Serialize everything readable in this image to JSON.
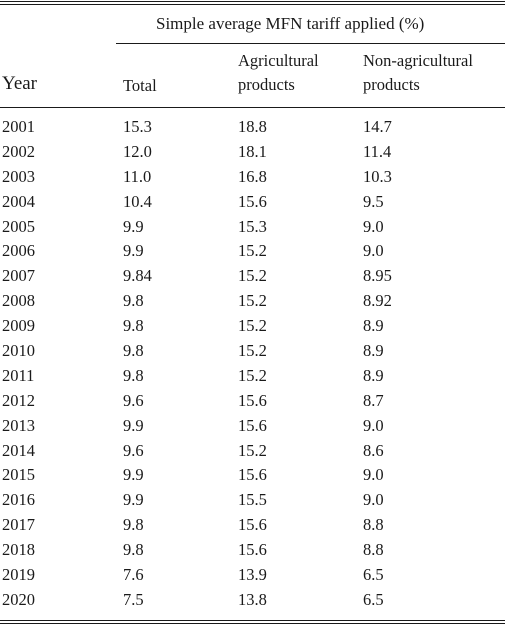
{
  "table": {
    "spanner": "Simple average MFN tariff applied (%)",
    "headers": {
      "year": "Year",
      "total": "Total",
      "agricultural_line1": "Agricultural",
      "agricultural_line2": "products",
      "nonagricultural_line1": "Non-agricultural",
      "nonagricultural_line2": "products"
    },
    "rows": [
      {
        "year": "2001",
        "total": "15.3",
        "agri": "18.8",
        "nonagri": "14.7"
      },
      {
        "year": "2002",
        "total": "12.0",
        "agri": "18.1",
        "nonagri": "11.4"
      },
      {
        "year": "2003",
        "total": "11.0",
        "agri": "16.8",
        "nonagri": "10.3"
      },
      {
        "year": "2004",
        "total": "10.4",
        "agri": "15.6",
        "nonagri": "9.5"
      },
      {
        "year": "2005",
        "total": "9.9",
        "agri": "15.3",
        "nonagri": "9.0"
      },
      {
        "year": "2006",
        "total": "9.9",
        "agri": "15.2",
        "nonagri": "9.0"
      },
      {
        "year": "2007",
        "total": "9.84",
        "agri": "15.2",
        "nonagri": "8.95"
      },
      {
        "year": "2008",
        "total": "9.8",
        "agri": "15.2",
        "nonagri": "8.92"
      },
      {
        "year": "2009",
        "total": "9.8",
        "agri": "15.2",
        "nonagri": "8.9"
      },
      {
        "year": "2010",
        "total": "9.8",
        "agri": "15.2",
        "nonagri": "8.9"
      },
      {
        "year": "2011",
        "total": "9.8",
        "agri": "15.2",
        "nonagri": "8.9"
      },
      {
        "year": "2012",
        "total": "9.6",
        "agri": "15.6",
        "nonagri": "8.7"
      },
      {
        "year": "2013",
        "total": "9.9",
        "agri": "15.6",
        "nonagri": "9.0"
      },
      {
        "year": "2014",
        "total": "9.6",
        "agri": "15.2",
        "nonagri": "8.6"
      },
      {
        "year": "2015",
        "total": "9.9",
        "agri": "15.6",
        "nonagri": "9.0"
      },
      {
        "year": "2016",
        "total": "9.9",
        "agri": "15.5",
        "nonagri": "9.0"
      },
      {
        "year": "2017",
        "total": "9.8",
        "agri": "15.6",
        "nonagri": "8.8"
      },
      {
        "year": "2018",
        "total": "9.8",
        "agri": "15.6",
        "nonagri": "8.8"
      },
      {
        "year": "2019",
        "total": "7.6",
        "agri": "13.9",
        "nonagri": "6.5"
      },
      {
        "year": "2020",
        "total": "7.5",
        "agri": "13.8",
        "nonagri": "6.5"
      }
    ]
  }
}
